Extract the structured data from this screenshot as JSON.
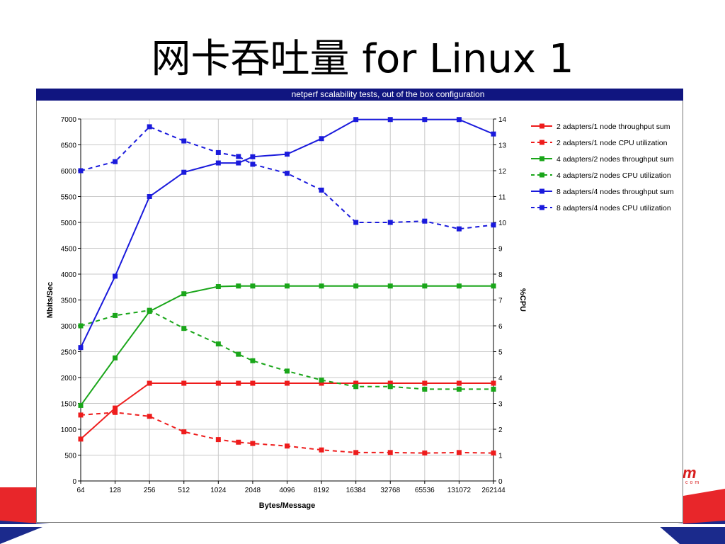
{
  "slide": {
    "title": "网卡吞吐量 for Linux 1"
  },
  "logo": {
    "text": "m",
    "sub": "com"
  },
  "colors": {
    "banner": "#101580",
    "red": "#ee1c1c",
    "green": "#1aa61a",
    "blue": "#1a1adc",
    "deco_red": "#e8262a"
  },
  "chart_data": {
    "type": "line",
    "title": "netperf scalability tests, out of the box configuration",
    "xlabel": "Bytes/Message",
    "ylabel": "Mbits/Sec",
    "y2label": "%CPU",
    "categories": [
      "64",
      "128",
      "256",
      "512",
      "1024",
      "2048",
      "4096",
      "8192",
      "16384",
      "32768",
      "65536",
      "131072",
      "262144"
    ],
    "ylim": [
      0,
      7000
    ],
    "yticks": [
      0,
      500,
      1000,
      1500,
      2000,
      2500,
      3000,
      3500,
      4000,
      4500,
      5000,
      5500,
      6000,
      6500,
      7000
    ],
    "y2lim": [
      0,
      14
    ],
    "y2ticks": [
      0,
      1,
      2,
      3,
      4,
      5,
      6,
      7,
      8,
      9,
      10,
      11,
      12,
      13,
      14
    ],
    "grid": true,
    "legend_position": "right",
    "series": [
      {
        "name": "2 adapters/1 node throughput sum",
        "axis": "left",
        "color": "#ee1c1c",
        "dashed": false,
        "x": [
          "64",
          "128",
          "256",
          "512",
          "1024",
          "1536",
          "2048",
          "4096",
          "8192",
          "16384",
          "32768",
          "65536",
          "131072",
          "262144"
        ],
        "values": [
          810,
          1410,
          1890,
          1890,
          1890,
          1890,
          1890,
          1890,
          1890,
          1890,
          1890,
          1890,
          1890,
          1890
        ]
      },
      {
        "name": "2 adapters/1 node CPU utilization",
        "axis": "right",
        "color": "#ee1c1c",
        "dashed": true,
        "x": [
          "64",
          "128",
          "256",
          "512",
          "1024",
          "1536",
          "2048",
          "4096",
          "8192",
          "16384",
          "32768",
          "65536",
          "131072",
          "262144"
        ],
        "values": [
          2.55,
          2.65,
          2.5,
          1.9,
          1.6,
          1.5,
          1.45,
          1.35,
          1.2,
          1.1,
          1.1,
          1.08,
          1.1,
          1.08
        ]
      },
      {
        "name": "4 adapters/2 nodes throughput sum",
        "axis": "left",
        "color": "#1aa61a",
        "dashed": false,
        "x": [
          "64",
          "128",
          "256",
          "512",
          "1024",
          "1536",
          "2048",
          "4096",
          "8192",
          "16384",
          "32768",
          "65536",
          "131072",
          "262144"
        ],
        "values": [
          1460,
          2380,
          3280,
          3620,
          3760,
          3770,
          3770,
          3770,
          3770,
          3770,
          3770,
          3770,
          3770,
          3770
        ]
      },
      {
        "name": "4 adapters/2 nodes CPU utilization",
        "axis": "right",
        "color": "#1aa61a",
        "dashed": true,
        "x": [
          "64",
          "128",
          "256",
          "512",
          "1024",
          "1536",
          "2048",
          "4096",
          "8192",
          "16384",
          "32768",
          "65536",
          "131072",
          "262144"
        ],
        "values": [
          6.0,
          6.4,
          6.6,
          5.9,
          5.3,
          4.9,
          4.65,
          4.25,
          3.9,
          3.65,
          3.65,
          3.55,
          3.55,
          3.55
        ]
      },
      {
        "name": "8 adapters/4 nodes throughput sum",
        "axis": "left",
        "color": "#1a1adc",
        "dashed": false,
        "x": [
          "64",
          "128",
          "256",
          "512",
          "1024",
          "1536",
          "2048",
          "4096",
          "8192",
          "16384",
          "32768",
          "65536",
          "131072",
          "262144"
        ],
        "values": [
          2580,
          3960,
          5500,
          5970,
          6150,
          6150,
          6270,
          6320,
          6620,
          6990,
          6990,
          6990,
          6990,
          6710
        ]
      },
      {
        "name": "8 adapters/4 nodes CPU utilization",
        "axis": "right",
        "color": "#1a1adc",
        "dashed": true,
        "x": [
          "64",
          "128",
          "256",
          "512",
          "1024",
          "1536",
          "2048",
          "4096",
          "8192",
          "16384",
          "32768",
          "65536",
          "131072",
          "262144"
        ],
        "values": [
          12.0,
          12.35,
          13.7,
          13.15,
          12.7,
          12.55,
          12.25,
          11.9,
          11.25,
          10.0,
          10.0,
          10.05,
          9.75,
          9.9
        ]
      }
    ]
  }
}
